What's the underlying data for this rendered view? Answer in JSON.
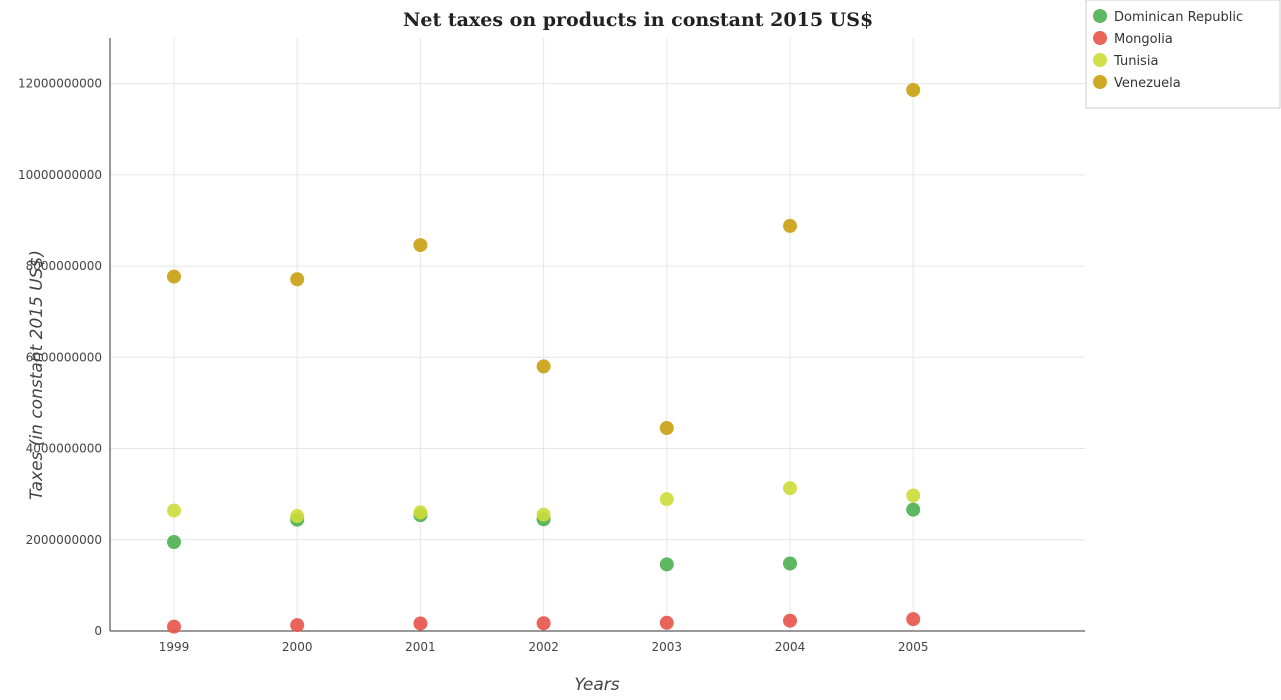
{
  "chart_data": {
    "type": "scatter",
    "title": "Net taxes on products in constant 2015 US$",
    "xlabel": "Years",
    "ylabel": "Taxes (in constant 2015 US$)",
    "categories": [
      "1999",
      "2000",
      "2001",
      "2002",
      "2003",
      "2004",
      "2005"
    ],
    "ylim": [
      0,
      13000000000
    ],
    "yticks": [
      0,
      2000000000,
      4000000000,
      6000000000,
      8000000000,
      10000000000,
      12000000000
    ],
    "ytick_labels": [
      "0",
      "2000000000",
      "4000000000",
      "6000000000",
      "8000000000",
      "10000000000",
      "12000000000"
    ],
    "grid": true,
    "legend_position": "top-right",
    "series": [
      {
        "name": "Dominican Republic",
        "color": "#4caf50",
        "values": [
          1950000000,
          2440000000,
          2540000000,
          2450000000,
          1460000000,
          1480000000,
          2660000000
        ]
      },
      {
        "name": "Mongolia",
        "color": "#e8534a",
        "values": [
          95000000,
          130000000,
          165000000,
          170000000,
          180000000,
          225000000,
          260000000
        ]
      },
      {
        "name": "Tunisia",
        "color": "#cddc39",
        "values": [
          2640000000,
          2520000000,
          2600000000,
          2550000000,
          2890000000,
          3130000000,
          2970000000
        ]
      },
      {
        "name": "Venezuela",
        "color": "#c8a010",
        "values": [
          7770000000,
          7710000000,
          8460000000,
          5800000000,
          4450000000,
          8880000000,
          11860000000
        ]
      }
    ]
  }
}
